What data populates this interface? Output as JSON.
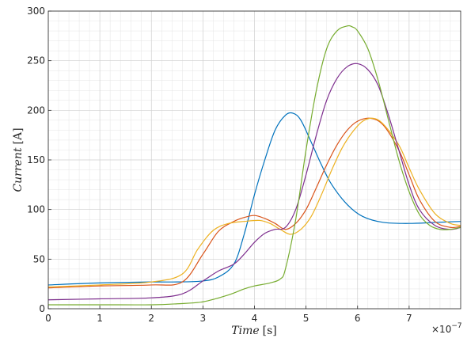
{
  "chart_data": {
    "type": "line",
    "xlabel_italic": "Time",
    "xlabel_unit": "[s]",
    "ylabel_italic": "Current",
    "ylabel_unit": "[A]",
    "x_exponent_label": "×10",
    "x_exponent_power": "−7",
    "x_scale": 1e-07,
    "xlim": [
      0,
      8
    ],
    "ylim": [
      0,
      300
    ],
    "x_ticks": [
      0,
      1,
      2,
      3,
      4,
      5,
      6,
      7
    ],
    "x_tick_labels": [
      "0",
      "1",
      "2",
      "3",
      "4",
      "5",
      "6",
      "7"
    ],
    "y_ticks": [
      0,
      50,
      100,
      150,
      200,
      250,
      300
    ],
    "y_tick_labels": [
      "0",
      "50",
      "100",
      "150",
      "200",
      "250",
      "300"
    ],
    "grid": true,
    "minor_grid": true,
    "series": [
      {
        "color": "#0072BD",
        "x": [
          0,
          1,
          2,
          2.5,
          3,
          3.3,
          3.6,
          3.8,
          4.0,
          4.2,
          4.4,
          4.6,
          4.75,
          4.9,
          5.1,
          5.3,
          5.5,
          5.8,
          6.1,
          6.5,
          7.0,
          7.5,
          8.0
        ],
        "y": [
          24,
          26,
          27,
          27,
          28,
          32,
          45,
          75,
          115,
          150,
          180,
          195,
          197,
          190,
          168,
          145,
          125,
          105,
          93,
          87,
          86,
          87,
          88
        ]
      },
      {
        "color": "#D95319",
        "x": [
          0,
          1,
          2,
          2.6,
          3.0,
          3.3,
          3.6,
          3.8,
          4.0,
          4.2,
          4.4,
          4.6,
          4.8,
          5.0,
          5.2,
          5.4,
          5.6,
          5.8,
          6.0,
          6.25,
          6.5,
          6.8,
          7.0,
          7.2,
          7.5,
          7.8,
          8.0
        ],
        "y": [
          21,
          23,
          24,
          27,
          55,
          78,
          88,
          92,
          94,
          91,
          86,
          80,
          86,
          100,
          122,
          145,
          165,
          180,
          189,
          192,
          185,
          160,
          135,
          110,
          88,
          82,
          83
        ]
      },
      {
        "color": "#EDB120",
        "x": [
          0,
          1,
          2,
          2.6,
          2.9,
          3.2,
          3.5,
          3.8,
          4.1,
          4.3,
          4.5,
          4.7,
          4.9,
          5.1,
          5.3,
          5.5,
          5.7,
          5.9,
          6.1,
          6.3,
          6.5,
          6.8,
          7.0,
          7.2,
          7.5,
          7.8,
          8.0
        ],
        "y": [
          22,
          24,
          27,
          35,
          60,
          79,
          86,
          88,
          89,
          86,
          80,
          75,
          80,
          93,
          115,
          140,
          162,
          178,
          189,
          192,
          186,
          165,
          142,
          120,
          96,
          86,
          84
        ]
      },
      {
        "color": "#7E2F8E",
        "x": [
          0,
          1,
          2,
          2.6,
          3.0,
          3.3,
          3.6,
          3.8,
          4.0,
          4.2,
          4.4,
          4.6,
          4.8,
          5.0,
          5.2,
          5.4,
          5.6,
          5.8,
          6.0,
          6.2,
          6.4,
          6.6,
          6.8,
          7.0,
          7.2,
          7.5,
          7.8,
          8.0
        ],
        "y": [
          9,
          10,
          11,
          15,
          28,
          38,
          45,
          55,
          67,
          76,
          80,
          82,
          100,
          135,
          175,
          210,
          232,
          244,
          247,
          241,
          225,
          195,
          160,
          125,
          100,
          84,
          80,
          82
        ]
      },
      {
        "color": "#77AC30",
        "x": [
          0,
          1,
          2,
          2.5,
          3.0,
          3.5,
          3.8,
          4.0,
          4.3,
          4.5,
          4.6,
          4.8,
          5.0,
          5.2,
          5.4,
          5.6,
          5.8,
          5.9,
          6.0,
          6.2,
          6.4,
          6.6,
          6.8,
          7.0,
          7.2,
          7.4,
          7.6,
          7.8,
          8.0
        ],
        "y": [
          4,
          4,
          4,
          5,
          7,
          14,
          20,
          23,
          26,
          30,
          40,
          90,
          160,
          220,
          262,
          280,
          285,
          284,
          280,
          262,
          230,
          190,
          150,
          118,
          95,
          84,
          80,
          80,
          82
        ]
      }
    ]
  }
}
